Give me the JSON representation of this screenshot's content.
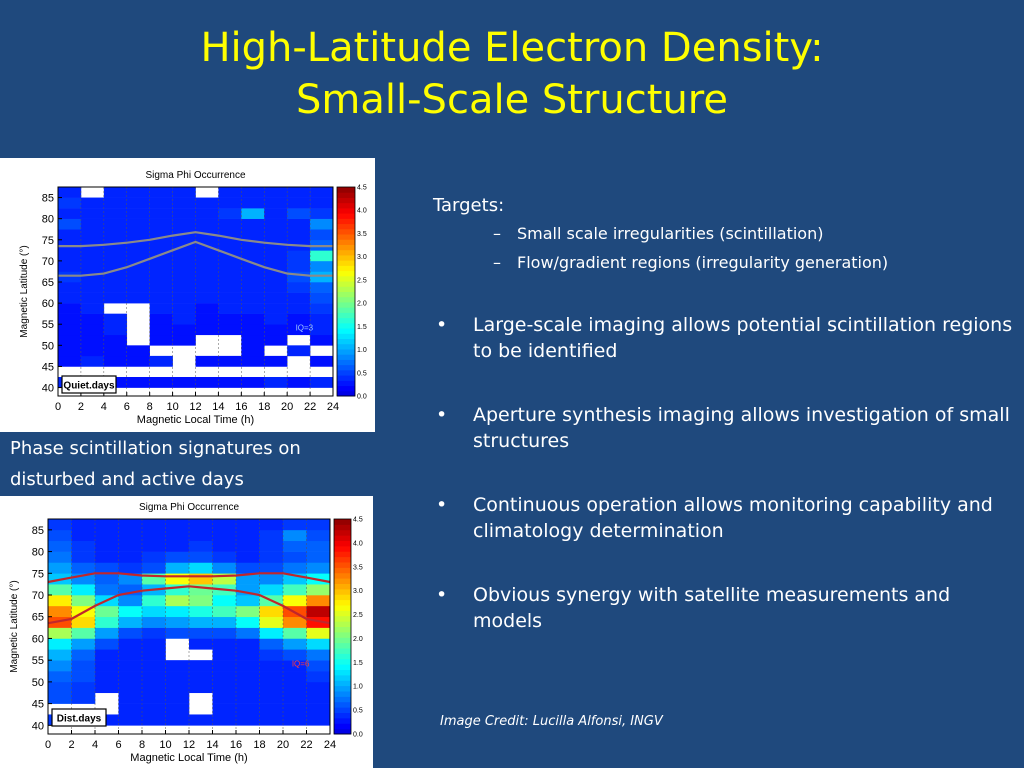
{
  "slide": {
    "title_line1": "High-Latitude Electron Density:",
    "title_line2": "Small-Scale Structure",
    "caption_line1": "Phase scintillation signatures on",
    "caption_line2": "disturbed and active days",
    "targets_label": "Targets:",
    "sub_bullets": [
      "Small scale irregularities (scintillation)",
      "Flow/gradient regions (irregularity generation)"
    ],
    "bullets": [
      "Large-scale imaging allows potential scintillation regions to be identified",
      "Aperture synthesis imaging allows investigation of small structures",
      "Continuous operation allows monitoring capability and climatology determination",
      "Obvious synergy with satellite measurements and models"
    ],
    "credit": "Image Credit: Lucilla Alfonsi, INGV"
  },
  "chart_data": [
    {
      "type": "heatmap",
      "title": "Sigma Phi Occurrence",
      "xlabel": "Magnetic Local Time (h)",
      "ylabel": "Magnetic Latitude (°)",
      "xticks": [
        0,
        2,
        4,
        6,
        8,
        10,
        12,
        14,
        16,
        18,
        20,
        22,
        24
      ],
      "yticks": [
        40,
        45,
        50,
        55,
        60,
        65,
        70,
        75,
        80,
        85
      ],
      "xlim": [
        0,
        24
      ],
      "ylim": [
        38,
        87.5
      ],
      "colorbar_ticks": [
        "0.0",
        "0.5",
        "1.0",
        "1.5",
        "2.0",
        "2.5",
        "3.0",
        "3.5",
        "4.0",
        "4.5"
      ],
      "colorbar_range": [
        0,
        4.5
      ],
      "annotation": "IQ=3",
      "label_box": "Quiet.days",
      "x_bins": [
        0,
        2,
        4,
        6,
        8,
        10,
        12,
        14,
        16,
        18,
        20,
        22
      ],
      "y_bins": [
        40,
        42.5,
        45,
        47.5,
        50,
        52.5,
        55,
        57.5,
        60,
        62.5,
        65,
        67.5,
        70,
        72.5,
        75,
        77.5,
        80,
        82.5,
        85
      ],
      "values": [
        [
          0.3,
          0.2,
          0.2,
          0.2,
          0.2,
          0.2,
          0.2,
          0.2,
          0.2,
          0.3,
          0.2,
          0.3
        ],
        [
          null,
          null,
          null,
          null,
          null,
          null,
          null,
          null,
          null,
          null,
          null,
          null
        ],
        [
          0.2,
          0.3,
          0.2,
          0.2,
          0.3,
          null,
          0.2,
          0.2,
          0.2,
          0.2,
          null,
          0.2
        ],
        [
          0.2,
          0.2,
          0.2,
          0.2,
          null,
          null,
          null,
          null,
          0.2,
          null,
          0.3,
          null
        ],
        [
          0.2,
          0.2,
          0.2,
          null,
          0.2,
          0.2,
          null,
          null,
          0.2,
          0.2,
          null,
          0.2
        ],
        [
          0.2,
          0.2,
          0.3,
          null,
          0.2,
          0.2,
          0.2,
          0.2,
          0.2,
          0.2,
          0.2,
          0.3
        ],
        [
          0.2,
          0.2,
          0.3,
          null,
          0.2,
          0.3,
          0.2,
          0.2,
          0.2,
          0.3,
          0.2,
          0.3
        ],
        [
          0.2,
          0.3,
          null,
          null,
          0.3,
          0.3,
          0.2,
          0.3,
          0.3,
          0.3,
          0.3,
          0.4
        ],
        [
          0.3,
          0.3,
          0.3,
          0.3,
          0.3,
          0.3,
          0.3,
          0.3,
          0.3,
          0.3,
          0.3,
          0.5
        ],
        [
          0.3,
          0.3,
          0.3,
          0.3,
          0.3,
          0.3,
          0.3,
          0.3,
          0.3,
          0.3,
          0.4,
          0.6
        ],
        [
          0.4,
          0.3,
          0.3,
          0.3,
          0.3,
          0.3,
          0.3,
          0.3,
          0.3,
          0.3,
          0.5,
          1.0
        ],
        [
          0.3,
          0.3,
          0.3,
          0.3,
          0.3,
          0.3,
          0.3,
          0.3,
          0.3,
          0.3,
          0.4,
          0.8
        ],
        [
          0.3,
          0.3,
          0.3,
          0.3,
          0.3,
          0.3,
          0.3,
          0.3,
          0.3,
          0.3,
          0.4,
          1.6
        ],
        [
          0.3,
          0.3,
          0.3,
          0.3,
          0.3,
          0.3,
          0.3,
          0.3,
          0.3,
          0.3,
          0.3,
          0.6
        ],
        [
          0.3,
          0.3,
          0.3,
          0.3,
          0.3,
          0.3,
          0.3,
          0.3,
          0.3,
          0.3,
          0.3,
          0.5
        ],
        [
          0.5,
          0.3,
          0.3,
          0.3,
          0.3,
          0.3,
          0.3,
          0.3,
          0.3,
          0.3,
          0.3,
          0.8
        ],
        [
          0.3,
          0.3,
          0.3,
          0.3,
          0.3,
          0.3,
          0.3,
          0.4,
          1.0,
          0.3,
          0.5,
          0.4
        ],
        [
          0.4,
          0.3,
          0.3,
          0.3,
          0.3,
          0.3,
          0.3,
          0.3,
          0.3,
          0.3,
          0.3,
          0.3
        ],
        [
          0.3,
          null,
          0.3,
          0.3,
          0.3,
          0.3,
          null,
          0.3,
          0.3,
          0.3,
          0.3,
          0.3
        ]
      ],
      "curves": [
        {
          "color": "#8a8a8a",
          "x": [
            0,
            2,
            4,
            6,
            8,
            10,
            12,
            14,
            16,
            18,
            20,
            22,
            24
          ],
          "y": [
            73.5,
            73.5,
            73.8,
            74.3,
            75.0,
            76.0,
            76.8,
            76.0,
            75.0,
            74.3,
            73.8,
            73.5,
            73.5
          ]
        },
        {
          "color": "#8a8a8a",
          "x": [
            0,
            2,
            4,
            6,
            8,
            10,
            12,
            14,
            16,
            18,
            20,
            22,
            24
          ],
          "y": [
            66.5,
            66.5,
            67.0,
            68.5,
            70.5,
            72.5,
            74.5,
            72.5,
            70.5,
            68.5,
            67.0,
            66.5,
            66.5
          ]
        }
      ]
    },
    {
      "type": "heatmap",
      "title": "Sigma Phi Occurrence",
      "xlabel": "Magnetic Local Time (h)",
      "ylabel": "Magnetic Latitude (°)",
      "xticks": [
        0,
        2,
        4,
        6,
        8,
        10,
        12,
        14,
        16,
        18,
        20,
        22,
        24
      ],
      "yticks": [
        40,
        45,
        50,
        55,
        60,
        65,
        70,
        75,
        80,
        85
      ],
      "xlim": [
        0,
        24
      ],
      "ylim": [
        38,
        87.5
      ],
      "colorbar_ticks": [
        "0.0",
        "0.5",
        "1.0",
        "1.5",
        "2.0",
        "2.5",
        "3.0",
        "3.5",
        "4.0",
        "4.5"
      ],
      "colorbar_range": [
        0,
        4.5
      ],
      "annotation": "IQ=6",
      "label_box": "Dist.days",
      "x_bins": [
        0,
        2,
        4,
        6,
        8,
        10,
        12,
        14,
        16,
        18,
        20,
        22
      ],
      "y_bins": [
        40,
        42.5,
        45,
        47.5,
        50,
        52.5,
        55,
        57.5,
        60,
        62.5,
        65,
        67.5,
        70,
        72.5,
        75,
        77.5,
        80,
        82.5,
        85
      ],
      "values": [
        [
          0.4,
          0.3,
          0.3,
          0.3,
          0.3,
          0.3,
          0.3,
          0.3,
          0.3,
          0.3,
          0.3,
          0.3
        ],
        [
          null,
          null,
          null,
          0.3,
          0.3,
          0.3,
          null,
          0.3,
          0.3,
          0.3,
          0.3,
          0.3
        ],
        [
          0.5,
          0.4,
          null,
          0.3,
          0.3,
          0.3,
          null,
          0.3,
          0.3,
          0.3,
          0.3,
          0.3
        ],
        [
          0.5,
          0.4,
          0.3,
          0.3,
          0.3,
          0.3,
          0.3,
          0.3,
          0.3,
          0.3,
          0.3,
          0.3
        ],
        [
          0.6,
          0.5,
          0.3,
          0.3,
          0.3,
          0.3,
          0.3,
          0.3,
          0.3,
          0.3,
          0.3,
          0.4
        ],
        [
          0.8,
          0.5,
          0.3,
          0.3,
          0.3,
          0.3,
          0.3,
          0.3,
          0.3,
          0.3,
          0.3,
          0.5
        ],
        [
          1.0,
          0.6,
          0.3,
          0.3,
          0.3,
          null,
          null,
          0.3,
          0.3,
          0.4,
          0.5,
          0.7
        ],
        [
          1.3,
          0.9,
          0.5,
          0.3,
          0.3,
          null,
          0.3,
          0.3,
          0.3,
          0.6,
          0.9,
          1.2
        ],
        [
          2.2,
          1.8,
          0.9,
          0.5,
          0.4,
          0.5,
          0.5,
          0.5,
          0.7,
          1.3,
          1.8,
          2.5
        ],
        [
          3.5,
          2.8,
          1.6,
          1.0,
          0.8,
          0.9,
          1.0,
          1.0,
          1.4,
          2.5,
          3.2,
          3.8
        ],
        [
          3.2,
          2.6,
          1.9,
          1.4,
          1.2,
          1.3,
          1.5,
          1.7,
          2.0,
          2.8,
          3.5,
          4.2
        ],
        [
          2.7,
          2.0,
          1.2,
          0.8,
          1.6,
          2.2,
          2.0,
          1.4,
          1.1,
          1.8,
          2.6,
          3.2
        ],
        [
          1.8,
          1.3,
          0.7,
          0.6,
          1.0,
          1.6,
          1.9,
          1.7,
          0.9,
          1.2,
          1.7,
          2.1
        ],
        [
          1.1,
          0.8,
          0.6,
          0.8,
          1.8,
          2.6,
          2.9,
          2.3,
          0.9,
          0.8,
          1.1,
          1.4
        ],
        [
          0.9,
          0.6,
          0.5,
          0.4,
          0.5,
          1.0,
          1.2,
          0.8,
          0.5,
          0.5,
          0.7,
          0.8
        ],
        [
          0.7,
          0.4,
          0.3,
          0.3,
          0.4,
          0.5,
          0.5,
          0.4,
          0.3,
          0.4,
          0.5,
          0.6
        ],
        [
          0.6,
          0.4,
          0.3,
          0.3,
          0.3,
          0.3,
          0.4,
          0.3,
          0.3,
          0.4,
          0.6,
          0.6
        ],
        [
          0.5,
          0.3,
          0.3,
          0.3,
          0.3,
          0.3,
          0.3,
          0.3,
          0.3,
          0.4,
          0.8,
          0.5
        ],
        [
          0.4,
          0.3,
          0.3,
          0.3,
          0.3,
          0.3,
          0.3,
          0.3,
          0.3,
          0.3,
          0.4,
          0.4
        ]
      ],
      "curves": [
        {
          "color": "#c0262c",
          "x": [
            0,
            2,
            4,
            6,
            8,
            10,
            12,
            14,
            16,
            18,
            20,
            22,
            24
          ],
          "y": [
            73.0,
            74.0,
            75.0,
            75.0,
            74.5,
            74.3,
            74.3,
            74.3,
            74.5,
            75.0,
            75.0,
            74.0,
            73.0
          ]
        },
        {
          "color": "#c0262c",
          "x": [
            0,
            2,
            4,
            6,
            8,
            10,
            12,
            14,
            16,
            18,
            20,
            22,
            24
          ],
          "y": [
            63.5,
            64.5,
            67.5,
            70.0,
            71.0,
            71.5,
            72.0,
            71.5,
            71.0,
            70.0,
            67.5,
            64.5,
            63.5
          ]
        }
      ]
    }
  ]
}
